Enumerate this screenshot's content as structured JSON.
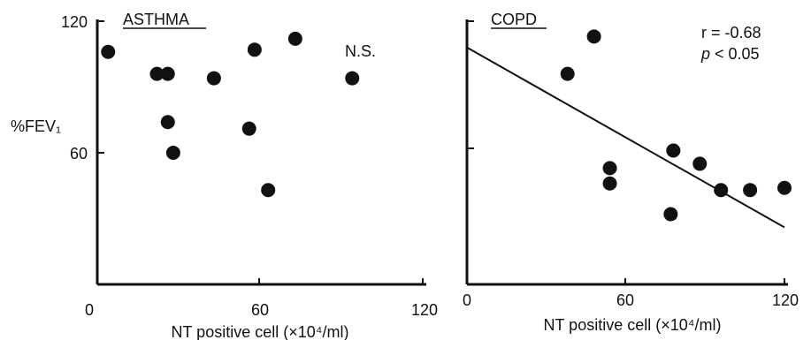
{
  "chart_data": [
    {
      "type": "scatter",
      "title": "ASTHMA",
      "ylabel": "%FEV₁",
      "xlabel": "NT positive cell (×10⁴/ml)",
      "xlim": [
        0,
        120
      ],
      "ylim": [
        0,
        120
      ],
      "x_ticks": [
        0,
        60,
        120
      ],
      "y_ticks": [
        60,
        120
      ],
      "x_tick_labels": [
        "0",
        "60",
        "120"
      ],
      "y_tick_labels": [
        "60",
        "120"
      ],
      "annotation": "N.S.",
      "grid": false,
      "points": [
        {
          "x": 4,
          "y": 106
        },
        {
          "x": 22,
          "y": 96
        },
        {
          "x": 26,
          "y": 96
        },
        {
          "x": 26,
          "y": 74
        },
        {
          "x": 28,
          "y": 60
        },
        {
          "x": 43,
          "y": 94
        },
        {
          "x": 56,
          "y": 71
        },
        {
          "x": 58,
          "y": 107
        },
        {
          "x": 63,
          "y": 43
        },
        {
          "x": 73,
          "y": 112
        },
        {
          "x": 94,
          "y": 94
        }
      ]
    },
    {
      "type": "scatter",
      "title": "COPD",
      "ylabel": "",
      "xlabel": "NT positive cell (×10⁴/ml)",
      "xlim": [
        0,
        120
      ],
      "ylim": [
        0,
        120
      ],
      "x_ticks": [
        0,
        60,
        120
      ],
      "y_ticks": [
        60,
        120
      ],
      "x_tick_labels": [
        "0",
        "60",
        "120"
      ],
      "y_tick_labels": [],
      "annotation": "r = -0.68",
      "annotation_p_symbol": "p",
      "annotation_p_text": " < 0.05",
      "grid": false,
      "points": [
        {
          "x": 38,
          "y": 96
        },
        {
          "x": 48,
          "y": 113
        },
        {
          "x": 54,
          "y": 53
        },
        {
          "x": 54,
          "y": 46
        },
        {
          "x": 77,
          "y": 32
        },
        {
          "x": 78,
          "y": 61
        },
        {
          "x": 88,
          "y": 55
        },
        {
          "x": 96,
          "y": 43
        },
        {
          "x": 107,
          "y": 43
        },
        {
          "x": 120,
          "y": 44
        }
      ],
      "fit_line": {
        "x": [
          0,
          120
        ],
        "y": [
          108,
          26
        ]
      }
    }
  ]
}
